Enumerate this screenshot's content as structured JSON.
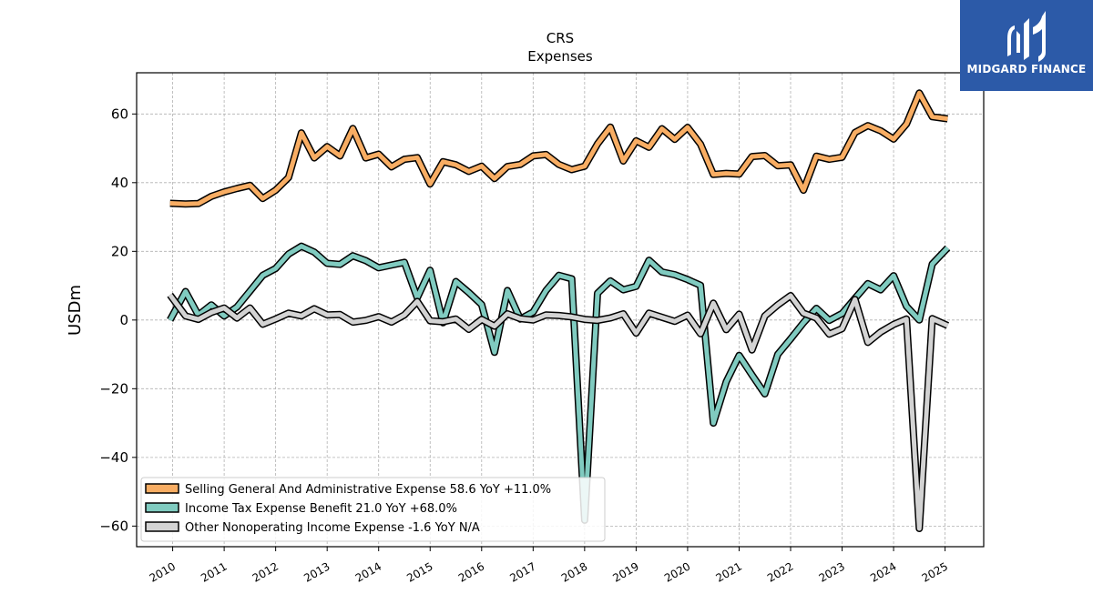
{
  "brand": {
    "name": "MIDGARD FINANCE",
    "background": "#2c5aa8"
  },
  "chart_data": {
    "type": "line",
    "title": "CRS",
    "subtitle": "Expenses",
    "ylabel": "USDm",
    "xlabel": "",
    "xlim": [
      2009.3,
      2025.75
    ],
    "ylim": [
      -66,
      72
    ],
    "yticks": [
      -60,
      -40,
      -20,
      0,
      20,
      40,
      60
    ],
    "ytick_labels": [
      "−60",
      "−40",
      "−20",
      "0",
      "20",
      "40",
      "60"
    ],
    "xticks": [
      2010,
      2011,
      2012,
      2013,
      2014,
      2015,
      2016,
      2017,
      2018,
      2019,
      2020,
      2021,
      2022,
      2023,
      2024,
      2025
    ],
    "grid": true,
    "legend_position": "lower-left",
    "series": [
      {
        "name": "Selling General And Administrative Expense",
        "legend_label": "Selling General And Administrative Expense  58.6 YoY +11.0%",
        "color": "#f8ad63",
        "x": [
          2009.95,
          2010.25,
          2010.5,
          2010.75,
          2011.0,
          2011.25,
          2011.5,
          2011.75,
          2012.0,
          2012.25,
          2012.5,
          2012.75,
          2013.0,
          2013.25,
          2013.5,
          2013.75,
          2014.0,
          2014.25,
          2014.5,
          2014.75,
          2015.0,
          2015.25,
          2015.5,
          2015.75,
          2016.0,
          2016.25,
          2016.5,
          2016.75,
          2017.0,
          2017.25,
          2017.5,
          2017.75,
          2018.0,
          2018.25,
          2018.5,
          2018.75,
          2019.0,
          2019.25,
          2019.5,
          2019.75,
          2020.0,
          2020.25,
          2020.5,
          2020.75,
          2021.0,
          2021.25,
          2021.5,
          2021.75,
          2022.0,
          2022.25,
          2022.5,
          2022.75,
          2023.0,
          2023.25,
          2023.5,
          2023.75,
          2024.0,
          2024.25,
          2024.5,
          2024.75,
          2025.05
        ],
        "values": [
          34,
          33.8,
          33.9,
          36,
          37.3,
          38.3,
          39.2,
          35.4,
          37.8,
          41.5,
          54.5,
          47.2,
          50.5,
          47.8,
          55.8,
          47.2,
          48.3,
          44.6,
          46.8,
          47.3,
          39.6,
          46.1,
          45.2,
          43.3,
          44.8,
          41.2,
          44.7,
          45.3,
          47.8,
          48.2,
          45.3,
          43.8,
          44.8,
          51.3,
          56.2,
          46.3,
          52.2,
          50.3,
          55.7,
          52.6,
          56.1,
          51.2,
          42.4,
          42.7,
          42.5,
          47.6,
          47.9,
          44.9,
          45.2,
          37.8,
          47.7,
          46.8,
          47.4,
          54.6,
          56.6,
          55.1,
          52.7,
          57.1,
          66.1,
          59.2,
          58.6
        ]
      },
      {
        "name": "Income Tax Expense Benefit",
        "legend_label": "Income Tax Expense Benefit  21.0 YoY +68.0%",
        "color": "#80cbc0",
        "x": [
          2009.95,
          2010.25,
          2010.5,
          2010.75,
          2011.0,
          2011.25,
          2011.5,
          2011.75,
          2012.0,
          2012.25,
          2012.5,
          2012.75,
          2013.0,
          2013.25,
          2013.5,
          2013.75,
          2014.0,
          2014.25,
          2014.5,
          2014.75,
          2015.0,
          2015.25,
          2015.5,
          2015.75,
          2016.0,
          2016.25,
          2016.5,
          2016.75,
          2017.0,
          2017.25,
          2017.5,
          2017.75,
          2018.0,
          2018.25,
          2018.5,
          2018.75,
          2019.0,
          2019.25,
          2019.5,
          2019.75,
          2020.0,
          2020.25,
          2020.5,
          2020.75,
          2021.0,
          2021.25,
          2021.5,
          2021.75,
          2022.0,
          2022.25,
          2022.5,
          2022.75,
          2023.0,
          2023.25,
          2023.5,
          2023.75,
          2024.0,
          2024.25,
          2024.5,
          2024.75,
          2025.05
        ],
        "values": [
          0,
          8.3,
          1.4,
          4.4,
          1.2,
          3.8,
          8.4,
          13.0,
          15.0,
          19.2,
          21.5,
          19.8,
          16.5,
          16.2,
          18.7,
          17.3,
          15.2,
          16.0,
          16.8,
          6.5,
          14.5,
          -0.8,
          11.2,
          8.0,
          4.5,
          -9.4,
          8.6,
          0.3,
          2.3,
          8.6,
          13.0,
          12.0,
          -58.3,
          7.8,
          11.4,
          8.8,
          9.8,
          17.4,
          14.0,
          13.2,
          11.8,
          10.1,
          -30.0,
          -18.0,
          -10.3,
          -16.0,
          -21.5,
          -10.0,
          -5.5,
          -0.8,
          3.4,
          -0.1,
          1.9,
          6.3,
          10.6,
          8.8,
          12.9,
          4.0,
          0.0,
          16.3,
          21.0
        ]
      },
      {
        "name": "Other Nonoperating Income Expense",
        "legend_label": "Other Nonoperating Income Expense  -1.6 YoY N/A",
        "color": "#d3d3d3",
        "x": [
          2009.95,
          2010.25,
          2010.5,
          2010.75,
          2011.0,
          2011.25,
          2011.5,
          2011.75,
          2012.0,
          2012.25,
          2012.5,
          2012.75,
          2013.0,
          2013.25,
          2013.5,
          2013.75,
          2014.0,
          2014.25,
          2014.5,
          2014.75,
          2015.0,
          2015.25,
          2015.5,
          2015.75,
          2016.0,
          2016.25,
          2016.5,
          2016.75,
          2017.0,
          2017.25,
          2017.5,
          2017.75,
          2018.0,
          2018.25,
          2018.5,
          2018.75,
          2019.0,
          2019.25,
          2019.5,
          2019.75,
          2020.0,
          2020.25,
          2020.5,
          2020.75,
          2021.0,
          2021.25,
          2021.5,
          2021.75,
          2022.0,
          2022.25,
          2022.5,
          2022.75,
          2023.0,
          2023.25,
          2023.5,
          2023.75,
          2024.0,
          2024.25,
          2024.5,
          2024.75,
          2025.05
        ],
        "values": [
          7.3,
          1.2,
          0.2,
          2.2,
          3.5,
          0.6,
          3.5,
          -1.2,
          0.3,
          2.0,
          1.2,
          3.3,
          1.5,
          1.6,
          -0.6,
          -0.1,
          1.0,
          -0.6,
          1.5,
          5.4,
          -0.2,
          -0.5,
          0.3,
          -2.7,
          0.2,
          -1.8,
          1.8,
          0.4,
          0.0,
          1.5,
          1.3,
          0.9,
          0.2,
          -0.1,
          0.6,
          1.8,
          -3.8,
          2.0,
          0.8,
          -0.4,
          1.4,
          -4.0,
          4.9,
          -2.8,
          1.7,
          -8.7,
          1.2,
          4.4,
          7.1,
          2.0,
          0.6,
          -4.1,
          -2.5,
          6.0,
          -6.5,
          -3.5,
          -1.3,
          0.3,
          -60.7,
          0.4,
          -1.6
        ]
      }
    ]
  }
}
